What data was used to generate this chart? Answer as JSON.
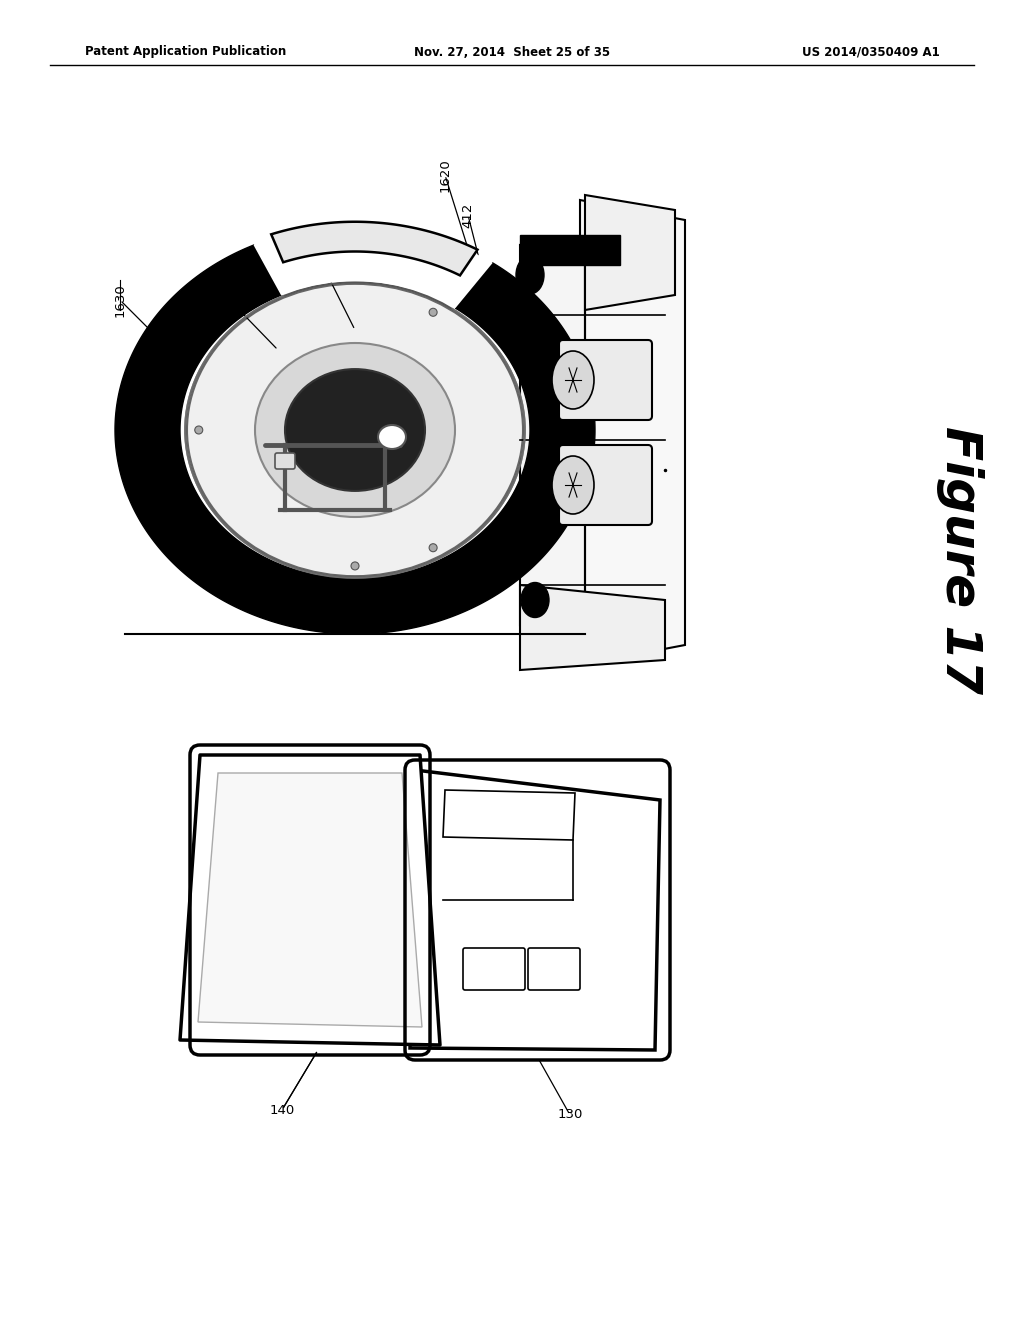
{
  "bg_color": "#ffffff",
  "header_left": "Patent Application Publication",
  "header_mid": "Nov. 27, 2014  Sheet 25 of 35",
  "header_right": "US 2014/0350409 A1",
  "figure_label": "Figure 17"
}
